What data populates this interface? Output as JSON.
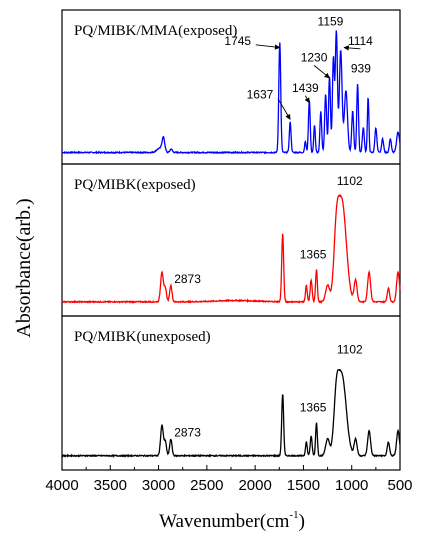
{
  "chart_data": {
    "type": "line",
    "title": "",
    "xlabel": "Wavenumber(cm",
    "xlabel_sup": "-1",
    "xlabel_close": ")",
    "ylabel": "Absorbance(arb.)",
    "xlim": [
      4000,
      500
    ],
    "x_reversed": true,
    "x_ticks": [
      4000,
      3500,
      3000,
      2500,
      2000,
      1500,
      1000,
      500
    ],
    "x_tick_labels": [
      "4000",
      "3500",
      "3000",
      "2500",
      "2000",
      "1500",
      "1000",
      "500"
    ],
    "grid": false,
    "legend": "none",
    "panel_ylim": [
      0,
      1
    ],
    "panels": [
      {
        "name": "PQ/MIBK/MMA(exposed)",
        "color": "#0000ff",
        "baseline": 0.04,
        "peaks": [
          {
            "x": 2990,
            "h": 0.03,
            "w": 30
          },
          {
            "x": 2950,
            "h": 0.1,
            "w": 14
          },
          {
            "x": 2870,
            "h": 0.025,
            "w": 12
          },
          {
            "x": 1745,
            "h": 0.8,
            "w": 10
          },
          {
            "x": 1637,
            "h": 0.22,
            "w": 9
          },
          {
            "x": 1480,
            "h": 0.08,
            "w": 8
          },
          {
            "x": 1439,
            "h": 0.38,
            "w": 9
          },
          {
            "x": 1385,
            "h": 0.2,
            "w": 8
          },
          {
            "x": 1320,
            "h": 0.3,
            "w": 9
          },
          {
            "x": 1270,
            "h": 0.42,
            "w": 10
          },
          {
            "x": 1230,
            "h": 0.55,
            "w": 10
          },
          {
            "x": 1190,
            "h": 0.68,
            "w": 10
          },
          {
            "x": 1159,
            "h": 0.88,
            "w": 11
          },
          {
            "x": 1114,
            "h": 0.74,
            "w": 14
          },
          {
            "x": 1060,
            "h": 0.45,
            "w": 16
          },
          {
            "x": 990,
            "h": 0.3,
            "w": 10
          },
          {
            "x": 939,
            "h": 0.5,
            "w": 9
          },
          {
            "x": 880,
            "h": 0.18,
            "w": 10
          },
          {
            "x": 830,
            "h": 0.4,
            "w": 8
          },
          {
            "x": 750,
            "h": 0.18,
            "w": 10
          },
          {
            "x": 680,
            "h": 0.1,
            "w": 10
          },
          {
            "x": 600,
            "h": 0.1,
            "w": 10
          },
          {
            "x": 520,
            "h": 0.15,
            "w": 15
          }
        ],
        "annotations": [
          {
            "text": "1745",
            "x": 1745,
            "y": 0.8,
            "label_x": 2180,
            "label_y": 0.82,
            "arrow": true
          },
          {
            "text": "1637",
            "x": 1637,
            "y": 0.28,
            "label_x": 1950,
            "label_y": 0.43,
            "arrow": true
          },
          {
            "text": "1439",
            "x": 1439,
            "y": 0.4,
            "label_x": 1480,
            "label_y": 0.48,
            "arrow": true
          },
          {
            "text": "1230",
            "x": 1230,
            "y": 0.58,
            "label_x": 1390,
            "label_y": 0.7,
            "arrow": true
          },
          {
            "text": "1159",
            "x": 1159,
            "y": 0.88,
            "label_x": 1220,
            "label_y": 0.96,
            "arrow": false
          },
          {
            "text": "1114",
            "x": 1080,
            "y": 0.8,
            "label_x": 910,
            "label_y": 0.82,
            "arrow": true
          },
          {
            "text": "939",
            "x": 939,
            "y": 0.52,
            "label_x": 905,
            "label_y": 0.62,
            "arrow": false
          }
        ]
      },
      {
        "name": "PQ/MIBK(exposed)",
        "color": "#ff0000",
        "baseline": 0.06,
        "peaks": [
          {
            "x": 2965,
            "h": 0.22,
            "w": 14
          },
          {
            "x": 2930,
            "h": 0.1,
            "w": 12
          },
          {
            "x": 2873,
            "h": 0.12,
            "w": 12
          },
          {
            "x": 2200,
            "h": 0.01,
            "w": 200
          },
          {
            "x": 1715,
            "h": 0.5,
            "w": 10
          },
          {
            "x": 1470,
            "h": 0.12,
            "w": 9
          },
          {
            "x": 1420,
            "h": 0.16,
            "w": 10
          },
          {
            "x": 1365,
            "h": 0.24,
            "w": 9
          },
          {
            "x": 1250,
            "h": 0.12,
            "w": 20
          },
          {
            "x": 1160,
            "h": 0.35,
            "w": 25
          },
          {
            "x": 1102,
            "h": 0.74,
            "w": 45
          },
          {
            "x": 960,
            "h": 0.16,
            "w": 15
          },
          {
            "x": 820,
            "h": 0.22,
            "w": 15
          },
          {
            "x": 620,
            "h": 0.1,
            "w": 12
          },
          {
            "x": 520,
            "h": 0.22,
            "w": 15
          }
        ],
        "annotations": [
          {
            "text": "2873",
            "x": 2873,
            "y": 0.18,
            "label_x": 2700,
            "label_y": 0.2,
            "arrow": false
          },
          {
            "text": "1365",
            "x": 1365,
            "y": 0.3,
            "label_x": 1400,
            "label_y": 0.38,
            "arrow": false
          },
          {
            "text": "1102",
            "x": 1102,
            "y": 0.8,
            "label_x": 1020,
            "label_y": 0.92,
            "arrow": false
          }
        ]
      },
      {
        "name": "PQ/MIBK(unexposed)",
        "color": "#000000",
        "baseline": 0.06,
        "peaks": [
          {
            "x": 2965,
            "h": 0.22,
            "w": 14
          },
          {
            "x": 2930,
            "h": 0.1,
            "w": 12
          },
          {
            "x": 2873,
            "h": 0.12,
            "w": 12
          },
          {
            "x": 1715,
            "h": 0.45,
            "w": 10
          },
          {
            "x": 1470,
            "h": 0.1,
            "w": 9
          },
          {
            "x": 1420,
            "h": 0.14,
            "w": 10
          },
          {
            "x": 1365,
            "h": 0.24,
            "w": 9
          },
          {
            "x": 1250,
            "h": 0.12,
            "w": 20
          },
          {
            "x": 1160,
            "h": 0.3,
            "w": 25
          },
          {
            "x": 1102,
            "h": 0.58,
            "w": 45
          },
          {
            "x": 960,
            "h": 0.12,
            "w": 15
          },
          {
            "x": 820,
            "h": 0.18,
            "w": 15
          },
          {
            "x": 620,
            "h": 0.1,
            "w": 12
          },
          {
            "x": 520,
            "h": 0.18,
            "w": 15
          }
        ],
        "annotations": [
          {
            "text": "2873",
            "x": 2873,
            "y": 0.18,
            "label_x": 2700,
            "label_y": 0.2,
            "arrow": false
          },
          {
            "text": "1365",
            "x": 1365,
            "y": 0.3,
            "label_x": 1400,
            "label_y": 0.38,
            "arrow": false
          },
          {
            "text": "1102",
            "x": 1102,
            "y": 0.66,
            "label_x": 1020,
            "label_y": 0.8,
            "arrow": false
          }
        ]
      }
    ]
  }
}
